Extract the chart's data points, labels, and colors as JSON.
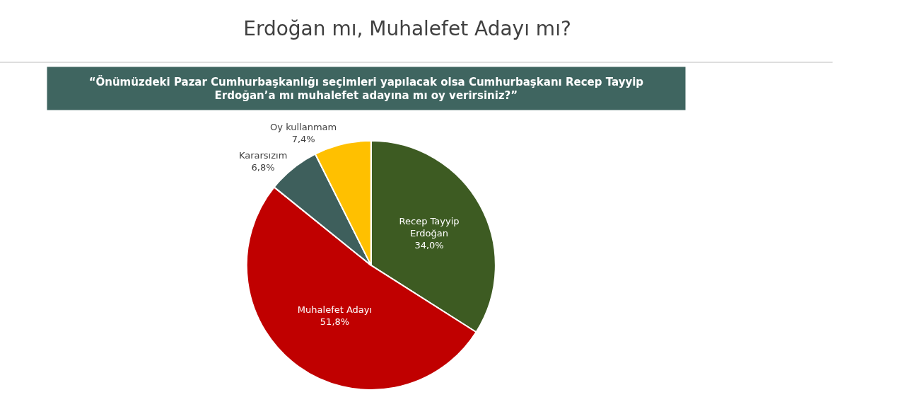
{
  "chart_data": {
    "type": "pie",
    "title": "Erdoğan mı, Muhalefet Adayı mı?",
    "subtitle": "“Önümüzdeki Pazar Cumhurbaşkanlığı seçimleri yapılacak olsa Cumhurbaşkanı Recep Tayyip Erdoğan’a mı muhalefet adayına mı oy verirsiniz?”",
    "categories": [
      "Recep Tayyip Erdoğan",
      "Muhalefet Adayı",
      "Kararsızım",
      "Oy kullanmam"
    ],
    "values": [
      34.0,
      51.8,
      6.8,
      7.4
    ],
    "value_labels": [
      "34,0%",
      "51,8%",
      "6,8%",
      "7,4%"
    ],
    "colors": [
      "#3d5b22",
      "#c00000",
      "#3e5f5c",
      "#ffc000"
    ],
    "legend": false
  }
}
